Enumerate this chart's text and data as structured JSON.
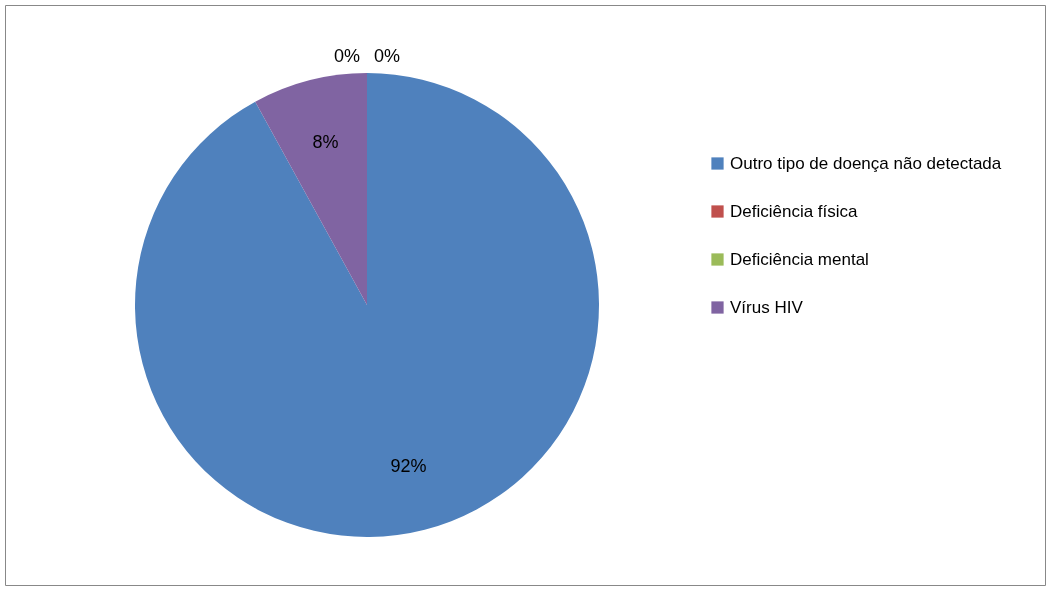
{
  "chart_data": {
    "type": "pie",
    "categories": [
      "Outro tipo de doença não detectada",
      "Deficiência física",
      "Deficiência mental",
      "Vírus HIV"
    ],
    "values": [
      92,
      0,
      0,
      8
    ],
    "colors": [
      "#4f81bd",
      "#c0504d",
      "#9bbb59",
      "#8064a2"
    ],
    "value_labels": [
      "92%",
      "0%",
      "0%",
      "8%"
    ],
    "legend": "right"
  }
}
